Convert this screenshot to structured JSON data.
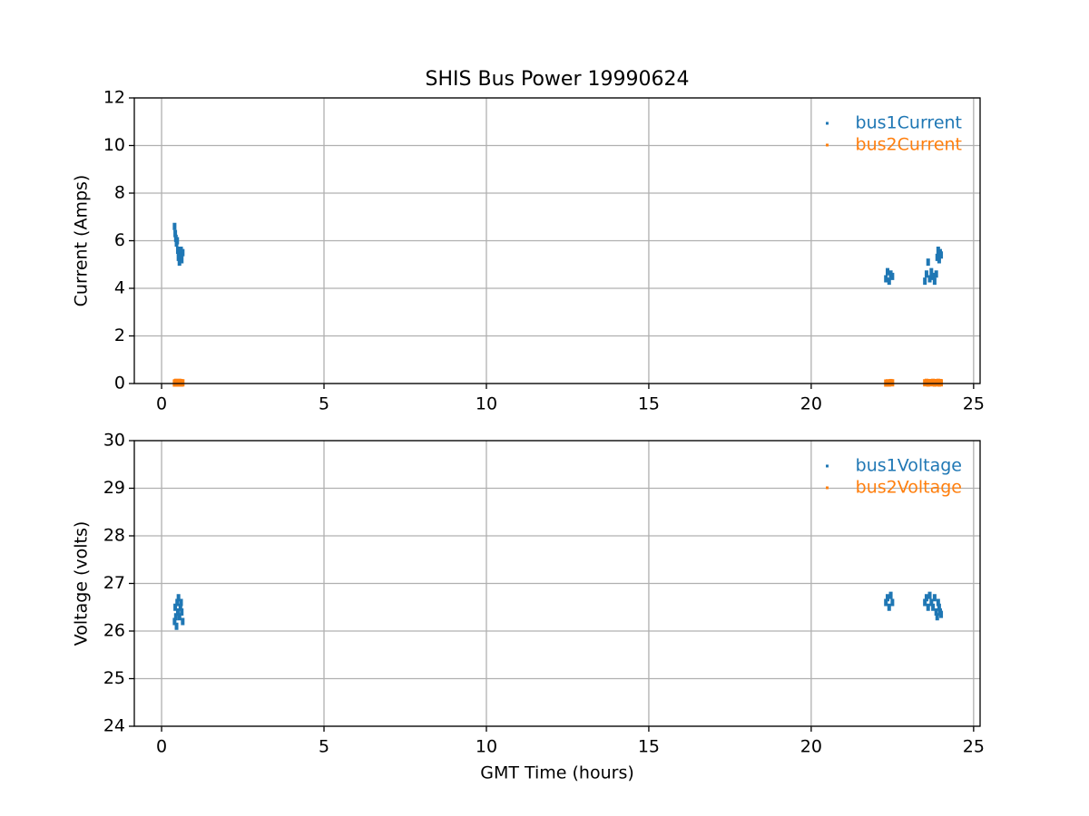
{
  "chart_data": [
    {
      "type": "scatter",
      "title": "SHIS Bus Power 19990624",
      "ylabel": "Current (Amps)",
      "x": [
        0.4,
        0.42,
        0.44,
        0.46,
        0.48,
        0.5,
        0.52,
        0.55,
        0.58,
        0.6,
        0.62,
        0.65,
        22.3,
        22.35,
        22.4,
        22.45,
        22.5,
        23.5,
        23.55,
        23.6,
        23.65,
        23.7,
        23.75,
        23.8,
        23.85,
        23.88,
        23.91,
        23.94,
        23.97,
        24.0
      ],
      "series": [
        {
          "name": "bus1Current",
          "color": "#1f77b4",
          "values": [
            6.6,
            6.3,
            6.1,
            5.9,
            6.0,
            5.6,
            5.3,
            5.1,
            5.4,
            5.6,
            5.2,
            5.5,
            4.4,
            4.7,
            4.3,
            4.6,
            4.5,
            4.3,
            4.6,
            5.1,
            4.4,
            4.7,
            4.5,
            4.3,
            4.6,
            5.3,
            5.6,
            5.2,
            5.5,
            5.4
          ]
        },
        {
          "name": "bus2Current",
          "color": "#ff7f0e",
          "values": [
            0.02,
            0.03,
            0.05,
            0.02,
            0.04,
            0.03,
            0.02,
            0.05,
            0.03,
            0.04,
            0.02,
            0.03,
            0.02,
            0.03,
            0.02,
            0.04,
            0.03,
            0.03,
            0.05,
            0.02,
            0.04,
            0.03,
            0.05,
            0.02,
            0.04,
            0.03,
            0.05,
            0.02,
            0.04,
            0.03
          ]
        }
      ],
      "xlim": [
        -0.84,
        25.2
      ],
      "xticks": [
        0,
        5,
        10,
        15,
        20,
        25
      ],
      "ylim": [
        0,
        12
      ],
      "yticks": [
        0,
        2,
        4,
        6,
        8,
        10,
        12
      ],
      "grid": true,
      "legend": "upper right"
    },
    {
      "type": "scatter",
      "xlabel": "GMT Time (hours)",
      "ylabel": "Voltage (volts)",
      "x": [
        0.4,
        0.42,
        0.44,
        0.46,
        0.48,
        0.5,
        0.52,
        0.55,
        0.58,
        0.6,
        0.62,
        0.65,
        22.3,
        22.35,
        22.4,
        22.45,
        22.5,
        23.5,
        23.55,
        23.6,
        23.65,
        23.7,
        23.75,
        23.8,
        23.85,
        23.88,
        23.91,
        23.94,
        23.97,
        24.0
      ],
      "series": [
        {
          "name": "bus1Voltage",
          "color": "#1f77b4",
          "values": [
            26.2,
            26.5,
            26.3,
            26.1,
            26.6,
            26.4,
            26.7,
            26.3,
            26.5,
            26.6,
            26.4,
            26.2,
            26.6,
            26.7,
            26.5,
            26.75,
            26.6,
            26.6,
            26.7,
            26.5,
            26.75,
            26.6,
            26.5,
            26.7,
            26.4,
            26.3,
            26.6,
            26.5,
            26.4,
            26.35
          ]
        },
        {
          "name": "bus2Voltage",
          "color": "#ff7f0e",
          "values": [
            null,
            null,
            null,
            null,
            null,
            null,
            null,
            null,
            null,
            null,
            null,
            null,
            null,
            null,
            null,
            null,
            null,
            null,
            null,
            null,
            null,
            null,
            null,
            null,
            null,
            null,
            null,
            null,
            null,
            null
          ]
        }
      ],
      "xlim": [
        -0.84,
        25.2
      ],
      "xticks": [
        0,
        5,
        10,
        15,
        20,
        25
      ],
      "ylim": [
        24,
        30
      ],
      "yticks": [
        24,
        25,
        26,
        27,
        28,
        29,
        30
      ],
      "grid": true,
      "legend": "upper right"
    }
  ]
}
